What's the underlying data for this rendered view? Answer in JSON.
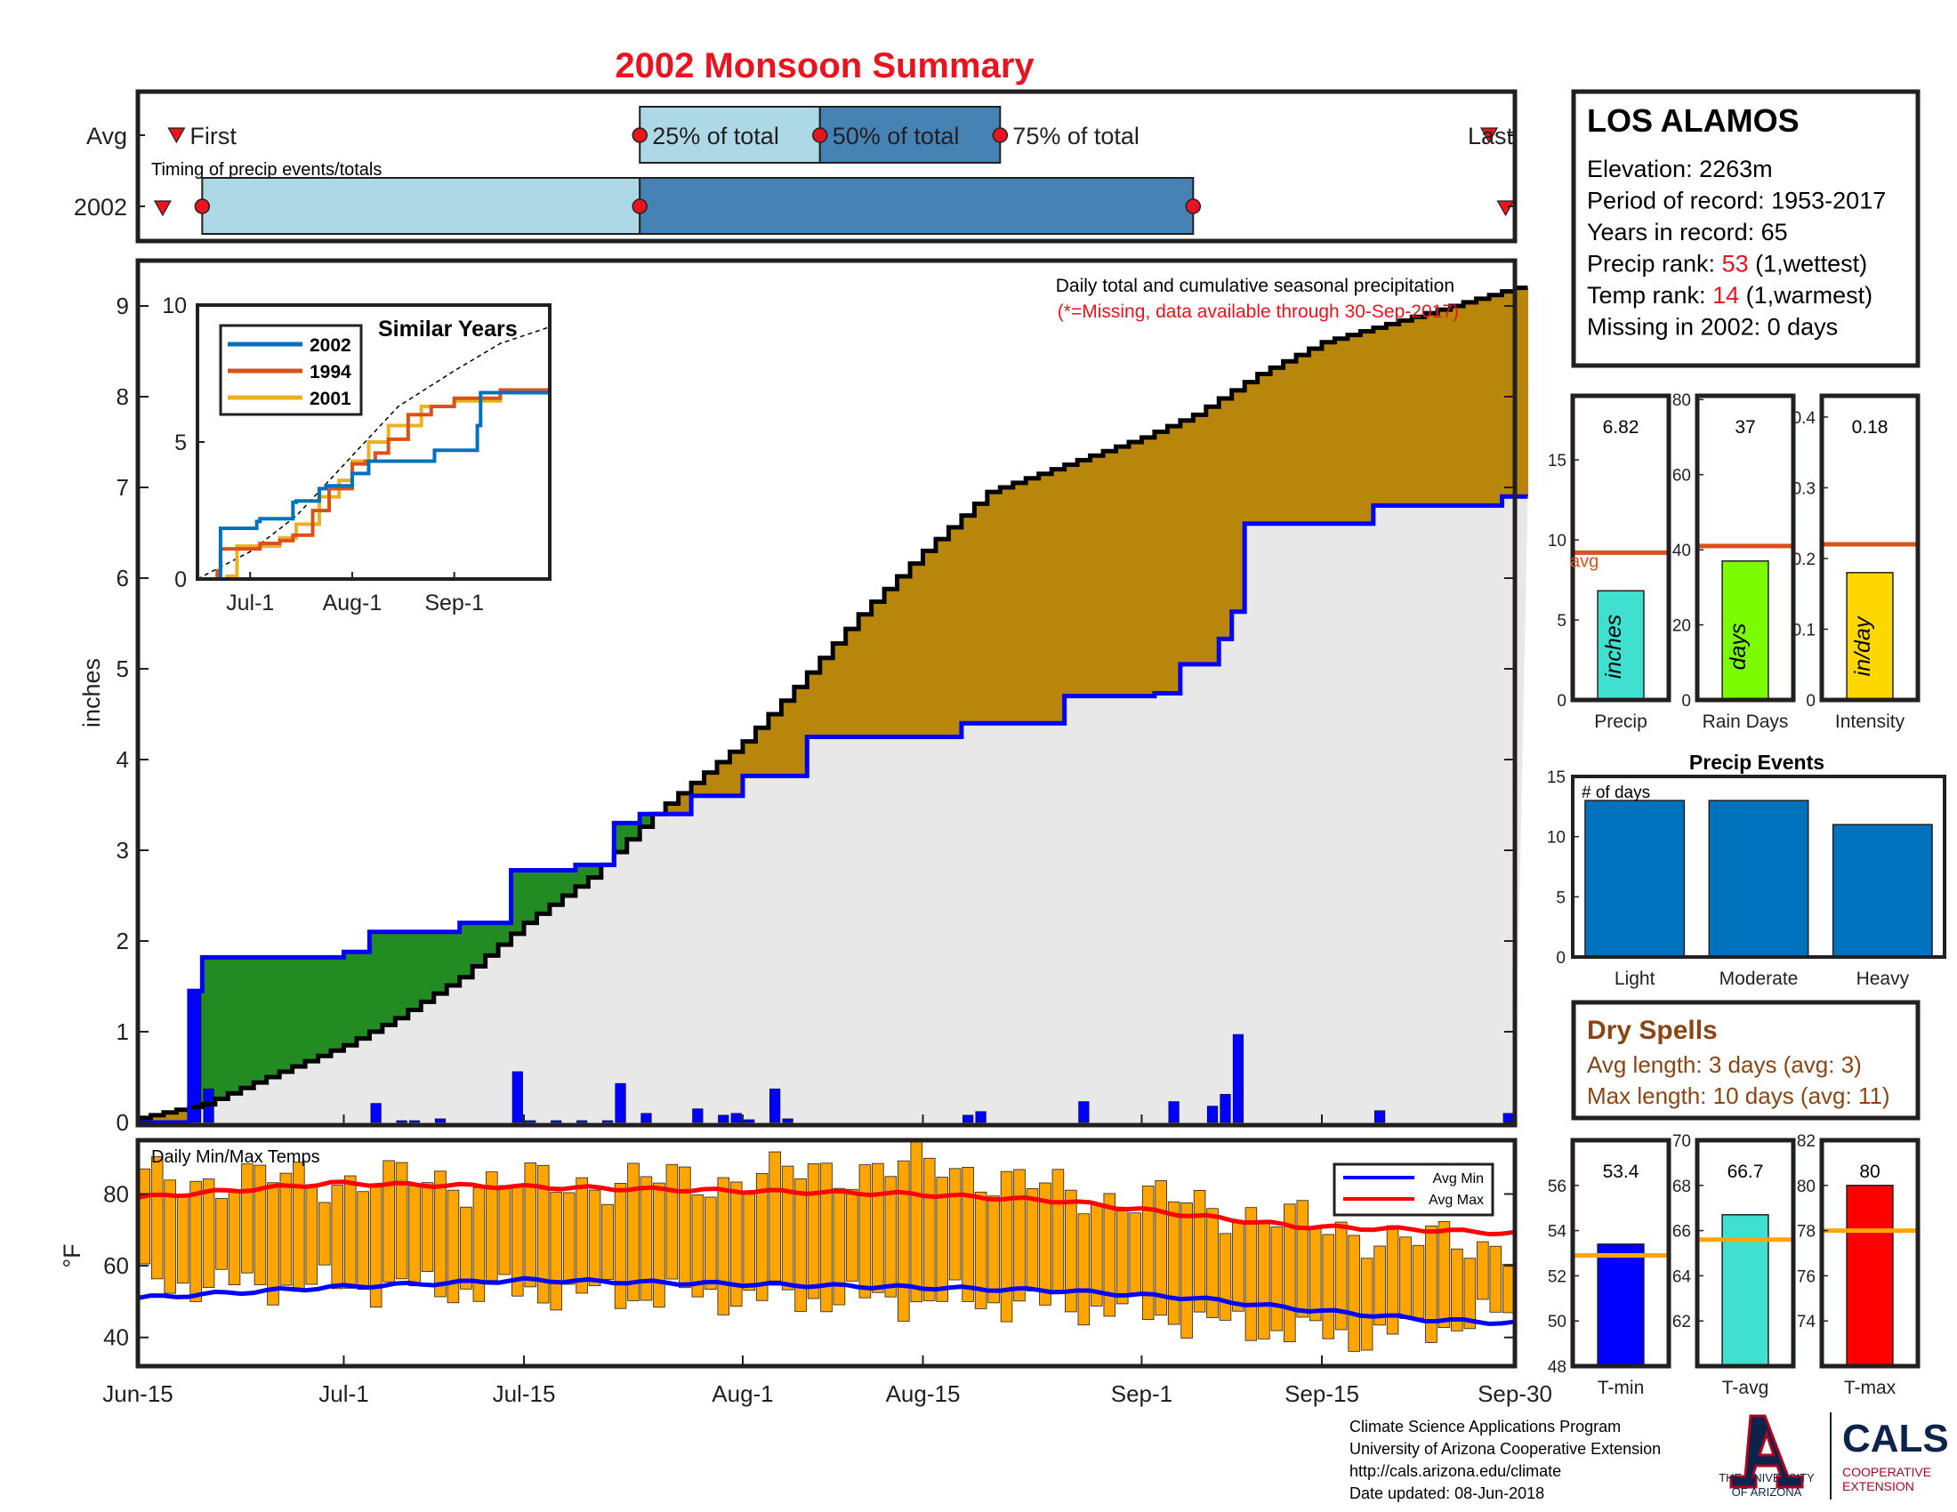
{
  "title": "2002 Monsoon Summary",
  "station": {
    "name": "LOS ALAMOS",
    "lines": [
      {
        "label": "Elevation: 2263m",
        "value": "",
        "rest": ""
      },
      {
        "label": "Period of record: 1953-2017",
        "value": "",
        "rest": ""
      },
      {
        "label": "Years in record: 65",
        "value": "",
        "rest": ""
      },
      {
        "label": "Precip rank: ",
        "value": "53",
        "rest": " (1,wettest)"
      },
      {
        "label": "Temp rank: ",
        "value": "14",
        "rest": " (1,warmest)"
      },
      {
        "label": "Missing in 2002: 0 days",
        "value": "",
        "rest": ""
      }
    ],
    "value_color": "#e8141e"
  },
  "timing": {
    "avg_label": "Avg",
    "year_label": "2002",
    "caption": "Timing of precip events/totals",
    "labels": {
      "first": "First",
      "p25": "25% of total",
      "p50": "50% of total",
      "p75": "75% of total",
      "last": "Last"
    },
    "avg": {
      "first": "2002-06-18",
      "p25": "2002-07-24",
      "p50": "2002-08-07",
      "p75": "2002-08-21",
      "last": "2002-09-28"
    },
    "y2002": {
      "first": "2002-06-19",
      "p25": "2002-06-20",
      "p50": "2002-07-24",
      "p75": "2002-09-05",
      "last": "2002-09-29"
    },
    "colors": {
      "light": "#add8e6",
      "dark": "#4682b4",
      "marker": "#e8141e"
    }
  },
  "main_chart": {
    "caption": "Daily total and cumulative seasonal precipitation",
    "missing_note": "(*=Missing, data available through 30-Sep-2017)",
    "ylabel": "inches",
    "ylim": [
      0,
      9.5
    ],
    "yticks": [
      0,
      1,
      2,
      3,
      4,
      5,
      6,
      7,
      8,
      9
    ],
    "x_start": "2002-06-15",
    "x_end": "2002-09-30",
    "xticks": [
      {
        "date": "2002-06-15",
        "label": "Jun-15"
      },
      {
        "date": "2002-07-01",
        "label": "Jul-1"
      },
      {
        "date": "2002-07-15",
        "label": "Jul-15"
      },
      {
        "date": "2002-08-01",
        "label": "Aug-1"
      },
      {
        "date": "2002-08-15",
        "label": "Aug-15"
      },
      {
        "date": "2002-09-01",
        "label": "Sep-1"
      },
      {
        "date": "2002-09-15",
        "label": "Sep-15"
      },
      {
        "date": "2002-09-30",
        "label": "Sep-30"
      }
    ],
    "avg_cumulative": {
      "dates": [
        "2002-06-15",
        "2002-06-20",
        "2002-06-25",
        "2002-07-01",
        "2002-07-05",
        "2002-07-10",
        "2002-07-15",
        "2002-07-20",
        "2002-07-25",
        "2002-08-01",
        "2002-08-05",
        "2002-08-10",
        "2002-08-15",
        "2002-08-20",
        "2002-08-25",
        "2002-09-01",
        "2002-09-05",
        "2002-09-10",
        "2002-09-15",
        "2002-09-20",
        "2002-09-25",
        "2002-09-30"
      ],
      "values": [
        0.05,
        0.2,
        0.5,
        0.85,
        1.15,
        1.6,
        2.2,
        2.7,
        3.4,
        4.2,
        4.8,
        5.6,
        6.3,
        6.95,
        7.2,
        7.55,
        7.8,
        8.25,
        8.6,
        8.8,
        9.0,
        9.2
      ]
    },
    "cumulative_2002": {
      "dates": [
        "2002-06-15",
        "2002-06-19",
        "2002-06-20",
        "2002-07-01",
        "2002-07-03",
        "2002-07-10",
        "2002-07-14",
        "2002-07-19",
        "2002-07-22",
        "2002-07-24",
        "2002-07-28",
        "2002-08-01",
        "2002-08-06",
        "2002-08-18",
        "2002-08-26",
        "2002-09-02",
        "2002-09-04",
        "2002-09-07",
        "2002-09-08",
        "2002-09-09",
        "2002-09-19",
        "2002-09-29",
        "2002-09-30"
      ],
      "values": [
        0.0,
        1.45,
        1.82,
        1.88,
        2.1,
        2.2,
        2.78,
        2.84,
        3.3,
        3.4,
        3.6,
        3.82,
        4.25,
        4.4,
        4.7,
        4.73,
        5.05,
        5.33,
        5.63,
        6.6,
        6.8,
        6.9,
        6.9
      ]
    },
    "daily_bars": [
      {
        "date": "2002-06-19",
        "value": 1.45
      },
      {
        "date": "2002-06-20",
        "value": 0.37
      },
      {
        "date": "2002-07-03",
        "value": 0.21
      },
      {
        "date": "2002-07-05",
        "value": 0.02
      },
      {
        "date": "2002-07-06",
        "value": 0.02
      },
      {
        "date": "2002-07-08",
        "value": 0.04
      },
      {
        "date": "2002-07-14",
        "value": 0.56
      },
      {
        "date": "2002-07-15",
        "value": 0.02
      },
      {
        "date": "2002-07-17",
        "value": 0.02
      },
      {
        "date": "2002-07-19",
        "value": 0.02
      },
      {
        "date": "2002-07-21",
        "value": 0.02
      },
      {
        "date": "2002-07-22",
        "value": 0.43
      },
      {
        "date": "2002-07-24",
        "value": 0.1
      },
      {
        "date": "2002-07-28",
        "value": 0.15
      },
      {
        "date": "2002-07-30",
        "value": 0.08
      },
      {
        "date": "2002-07-31",
        "value": 0.1
      },
      {
        "date": "2002-08-01",
        "value": 0.03
      },
      {
        "date": "2002-08-03",
        "value": 0.37
      },
      {
        "date": "2002-08-04",
        "value": 0.04
      },
      {
        "date": "2002-08-18",
        "value": 0.08
      },
      {
        "date": "2002-08-19",
        "value": 0.12
      },
      {
        "date": "2002-08-27",
        "value": 0.23
      },
      {
        "date": "2002-09-03",
        "value": 0.23
      },
      {
        "date": "2002-09-06",
        "value": 0.18
      },
      {
        "date": "2002-09-07",
        "value": 0.31
      },
      {
        "date": "2002-09-08",
        "value": 0.97
      },
      {
        "date": "2002-09-19",
        "value": 0.13
      },
      {
        "date": "2002-09-29",
        "value": 0.1
      }
    ],
    "colors": {
      "below_avg_fill": "#228b22",
      "above_avg_fill": "#b8860b",
      "base_fill": "#e8e8e8",
      "line_2002": "#0000ff",
      "line_avg": "#000000",
      "bars": "#0000ff"
    }
  },
  "similar_years": {
    "title": "Similar Years",
    "ylim": [
      0,
      10
    ],
    "yticks": [
      0,
      5,
      10
    ],
    "x_start": "2002-06-15",
    "x_end": "2002-09-30",
    "xticks": [
      {
        "date": "2002-07-01",
        "label": "Jul-1"
      },
      {
        "date": "2002-08-01",
        "label": "Aug-1"
      },
      {
        "date": "2002-09-01",
        "label": "Sep-1"
      }
    ],
    "avg_line": {
      "dates": [
        "2002-06-15",
        "2002-07-01",
        "2002-07-15",
        "2002-08-01",
        "2002-08-15",
        "2002-09-01",
        "2002-09-15",
        "2002-09-30"
      ],
      "values": [
        0.0,
        1.0,
        2.3,
        4.5,
        6.3,
        7.6,
        8.6,
        9.2
      ]
    },
    "series": [
      {
        "name": "2002",
        "color": "#0072bd",
        "dates": [
          "2002-06-15",
          "2002-06-21",
          "2002-06-22",
          "2002-07-03",
          "2002-07-04",
          "2002-07-14",
          "2002-07-15",
          "2002-07-22",
          "2002-07-24",
          "2002-08-01",
          "2002-08-06",
          "2002-08-26",
          "2002-09-08",
          "2002-09-09",
          "2002-09-30"
        ],
        "values": [
          0.0,
          0.0,
          1.85,
          2.1,
          2.2,
          2.8,
          2.85,
          3.3,
          3.4,
          3.85,
          4.3,
          4.7,
          5.6,
          6.8,
          6.9
        ]
      },
      {
        "name": "1994",
        "color": "#d95319",
        "dates": [
          "2002-06-15",
          "2002-06-21",
          "2002-06-22",
          "2002-07-04",
          "2002-07-10",
          "2002-07-14",
          "2002-07-20",
          "2002-07-25",
          "2002-08-01",
          "2002-08-05",
          "2002-08-08",
          "2002-08-12",
          "2002-08-18",
          "2002-08-25",
          "2002-09-01",
          "2002-09-15",
          "2002-09-30"
        ],
        "values": [
          0.0,
          0.3,
          1.1,
          1.3,
          1.4,
          1.6,
          2.5,
          3.3,
          4.2,
          4.3,
          4.6,
          5.1,
          6.0,
          6.3,
          6.6,
          6.9,
          6.9
        ]
      },
      {
        "name": "2001",
        "color": "#edb120",
        "dates": [
          "2002-06-15",
          "2002-06-24",
          "2002-06-27",
          "2002-07-10",
          "2002-07-15",
          "2002-07-22",
          "2002-07-28",
          "2002-08-01",
          "2002-08-06",
          "2002-08-12",
          "2002-08-22",
          "2002-09-01",
          "2002-09-15",
          "2002-09-30"
        ],
        "values": [
          0.0,
          0.1,
          1.2,
          1.5,
          2.0,
          3.0,
          3.6,
          4.3,
          5.0,
          5.6,
          6.3,
          6.5,
          6.9,
          6.9
        ]
      }
    ]
  },
  "temps": {
    "caption": "Daily Min/Max Temps",
    "ylabel": "°F",
    "ylim": [
      32,
      95
    ],
    "yticks": [
      40,
      60,
      80
    ],
    "legend": [
      {
        "name": "Avg Min",
        "color": "#0000ff"
      },
      {
        "name": "Avg Max",
        "color": "#ff0000"
      }
    ],
    "bar_color": "#ffa500",
    "tmin_key": [
      [
        0,
        55
      ],
      [
        20,
        54
      ],
      [
        35,
        52
      ],
      [
        50,
        51
      ],
      [
        65,
        50
      ],
      [
        75,
        48
      ],
      [
        85,
        43
      ],
      [
        95,
        40
      ],
      [
        107,
        47
      ]
    ],
    "tmax_key": [
      [
        0,
        84
      ],
      [
        15,
        84
      ],
      [
        30,
        83
      ],
      [
        45,
        84
      ],
      [
        55,
        87
      ],
      [
        62,
        88
      ],
      [
        72,
        80
      ],
      [
        80,
        78
      ],
      [
        90,
        72
      ],
      [
        98,
        67
      ],
      [
        107,
        66
      ]
    ],
    "avg_min": [
      [
        0,
        51
      ],
      [
        15,
        54
      ],
      [
        30,
        56
      ],
      [
        45,
        55
      ],
      [
        60,
        54
      ],
      [
        72,
        53
      ],
      [
        82,
        51
      ],
      [
        90,
        48
      ],
      [
        100,
        45
      ],
      [
        107,
        44
      ]
    ],
    "avg_max": [
      [
        0,
        79
      ],
      [
        15,
        83
      ],
      [
        30,
        82
      ],
      [
        45,
        81
      ],
      [
        60,
        80
      ],
      [
        72,
        78
      ],
      [
        82,
        74
      ],
      [
        90,
        71
      ],
      [
        100,
        70
      ],
      [
        107,
        69
      ]
    ]
  },
  "summary_bars": [
    {
      "label": "Precip",
      "value": 6.82,
      "value_label": "6.82",
      "avg": 9.2,
      "avg_label": "avg",
      "unit": "inches",
      "ylim": [
        0,
        19
      ],
      "yticks": [
        0,
        5,
        10,
        15
      ],
      "color": "#40e0d0"
    },
    {
      "label": "Rain Days",
      "value": 37,
      "value_label": "37",
      "avg": 41,
      "unit": "days",
      "ylim": [
        0,
        81
      ],
      "yticks": [
        0,
        20,
        40,
        60,
        80
      ],
      "color": "#7cfc00"
    },
    {
      "label": "Intensity",
      "value": 0.18,
      "value_label": "0.18",
      "avg": 0.22,
      "unit": "in/day",
      "ylim": [
        0,
        0.43
      ],
      "yticks": [
        0,
        0.1,
        0.2,
        0.3,
        0.4
      ],
      "color": "#ffd700"
    }
  ],
  "precip_events": {
    "title": "Precip Events",
    "ylabel_inside": "# of days",
    "categories": [
      "Light",
      "Moderate",
      "Heavy"
    ],
    "values": [
      13,
      13,
      11
    ],
    "ylim": [
      0,
      15
    ],
    "yticks": [
      0,
      5,
      10,
      15
    ],
    "color": "#0072bd"
  },
  "dry_spells": {
    "title": "Dry Spells",
    "lines": [
      "Avg length: 3 days (avg: 3)",
      "Max length: 10 days (avg: 11)"
    ],
    "color": "#8b4513"
  },
  "temp_bars": [
    {
      "label": "T-min",
      "value": 53.4,
      "value_label": "53.4",
      "avg": 52.9,
      "ylim": [
        48,
        58
      ],
      "yticks": [
        48,
        50,
        52,
        54,
        56
      ],
      "color": "#0000ff"
    },
    {
      "label": "T-avg",
      "value": 66.7,
      "value_label": "66.7",
      "avg": 65.6,
      "ylim": [
        60,
        70
      ],
      "yticks": [
        62,
        64,
        66,
        68,
        70
      ],
      "color": "#40e0d0"
    },
    {
      "label": "T-max",
      "value": 80,
      "value_label": "80",
      "avg": 78,
      "ylim": [
        72,
        82
      ],
      "yticks": [
        74,
        76,
        78,
        80,
        82
      ],
      "color": "#ff0000"
    }
  ],
  "avg_line_color": "#d95319",
  "temp_avg_line_color": "#ffa500",
  "footer": {
    "lines": [
      "Climate Science Applications Program",
      "University of Arizona Cooperative Extension",
      "http://cals.arizona.edu/climate",
      " Date updated: 08-Jun-2018"
    ],
    "logo_ua_line1": "THE UNIVERSITY",
    "logo_ua_line2": "OF ARIZONA",
    "logo_cals": "CALS",
    "logo_coop1": "COOPERATIVE",
    "logo_coop2": "EXTENSION"
  }
}
